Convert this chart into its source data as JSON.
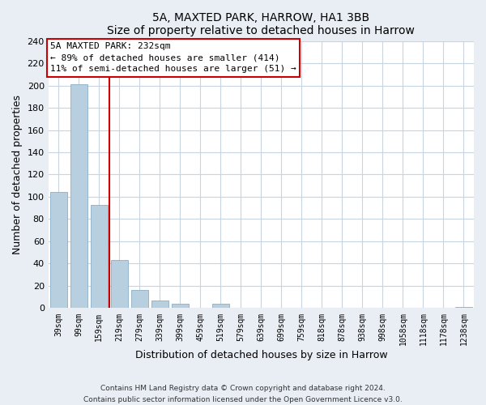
{
  "title": "5A, MAXTED PARK, HARROW, HA1 3BB",
  "subtitle": "Size of property relative to detached houses in Harrow",
  "xlabel": "Distribution of detached houses by size in Harrow",
  "ylabel": "Number of detached properties",
  "bar_labels": [
    "39sqm",
    "99sqm",
    "159sqm",
    "219sqm",
    "279sqm",
    "339sqm",
    "399sqm",
    "459sqm",
    "519sqm",
    "579sqm",
    "639sqm",
    "699sqm",
    "759sqm",
    "818sqm",
    "878sqm",
    "938sqm",
    "998sqm",
    "1058sqm",
    "1118sqm",
    "1178sqm",
    "1238sqm"
  ],
  "bar_values": [
    104,
    201,
    93,
    43,
    16,
    7,
    4,
    0,
    4,
    0,
    0,
    0,
    0,
    0,
    0,
    0,
    0,
    0,
    0,
    0,
    1
  ],
  "bar_color": "#b8cfe0",
  "bar_edge_color": "#8aaec8",
  "vline_x": 2.5,
  "vline_color": "#cc0000",
  "annotation_title": "5A MAXTED PARK: 232sqm",
  "annotation_line1": "← 89% of detached houses are smaller (414)",
  "annotation_line2": "11% of semi-detached houses are larger (51) →",
  "annotation_box_facecolor": "#ffffff",
  "annotation_box_edgecolor": "#cc0000",
  "ylim": [
    0,
    240
  ],
  "yticks": [
    0,
    20,
    40,
    60,
    80,
    100,
    120,
    140,
    160,
    180,
    200,
    220,
    240
  ],
  "footer1": "Contains HM Land Registry data © Crown copyright and database right 2024.",
  "footer2": "Contains public sector information licensed under the Open Government Licence v3.0.",
  "fig_facecolor": "#e8eef4",
  "axes_facecolor": "#ffffff",
  "grid_color": "#c8d4e0"
}
